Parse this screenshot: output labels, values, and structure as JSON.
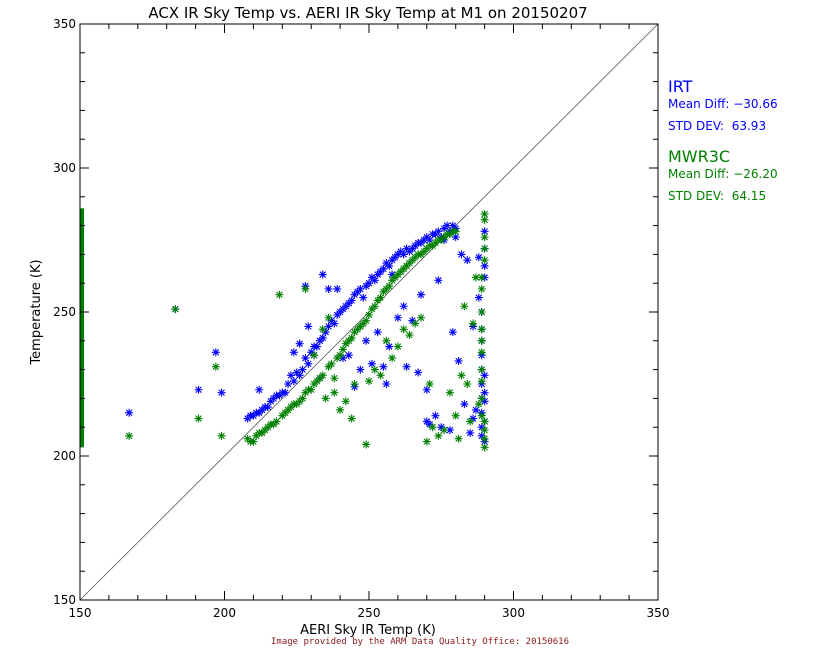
{
  "chart_data": {
    "type": "scatter",
    "title": "ACX IR Sky Temp vs. AERI IR Sky Temp at M1 on 20150207",
    "xlabel": "AERI Sky IR Temp (K)",
    "ylabel": "Temperature (K)",
    "xlim": [
      150,
      350
    ],
    "ylim": [
      150,
      350
    ],
    "xticks": [
      "150",
      "200",
      "250",
      "300",
      "350"
    ],
    "yticks": [
      "150",
      "200",
      "250",
      "300",
      "350"
    ],
    "grid": false,
    "reference_line": "1:1 diagonal",
    "legend_placement": "right",
    "series": [
      {
        "name": "IRT",
        "color": "#0000ff",
        "marker": "asterisk",
        "stats": [
          "Mean Diff: −30.66",
          "STD DEV:  63.93"
        ],
        "points": [
          [
            167,
            215
          ],
          [
            183,
            251
          ],
          [
            191,
            223
          ],
          [
            197,
            236
          ],
          [
            199,
            222
          ],
          [
            208,
            213
          ],
          [
            209,
            214
          ],
          [
            210,
            214
          ],
          [
            211,
            215
          ],
          [
            212,
            215
          ],
          [
            213,
            216
          ],
          [
            214,
            217
          ],
          [
            215,
            217
          ],
          [
            216,
            219
          ],
          [
            217,
            220
          ],
          [
            218,
            221
          ],
          [
            219,
            221
          ],
          [
            212,
            223
          ],
          [
            220,
            222
          ],
          [
            221,
            222
          ],
          [
            222,
            225
          ],
          [
            223,
            228
          ],
          [
            224,
            226
          ],
          [
            225,
            229
          ],
          [
            226,
            228
          ],
          [
            227,
            230
          ],
          [
            228,
            234
          ],
          [
            229,
            232
          ],
          [
            230,
            236
          ],
          [
            231,
            235
          ],
          [
            232,
            238
          ],
          [
            233,
            240
          ],
          [
            234,
            241
          ],
          [
            235,
            243
          ],
          [
            236,
            245
          ],
          [
            237,
            247
          ],
          [
            238,
            246
          ],
          [
            239,
            249
          ],
          [
            240,
            250
          ],
          [
            241,
            251
          ],
          [
            242,
            252
          ],
          [
            243,
            253
          ],
          [
            244,
            254
          ],
          [
            245,
            256
          ],
          [
            246,
            257
          ],
          [
            247,
            258
          ],
          [
            248,
            255
          ],
          [
            249,
            259
          ],
          [
            250,
            260
          ],
          [
            251,
            262
          ],
          [
            252,
            261
          ],
          [
            253,
            263
          ],
          [
            254,
            264
          ],
          [
            255,
            265
          ],
          [
            256,
            267
          ],
          [
            257,
            266
          ],
          [
            258,
            268
          ],
          [
            259,
            269
          ],
          [
            260,
            270
          ],
          [
            261,
            271
          ],
          [
            262,
            270
          ],
          [
            263,
            272
          ],
          [
            264,
            271
          ],
          [
            265,
            272
          ],
          [
            266,
            273
          ],
          [
            267,
            274
          ],
          [
            268,
            274
          ],
          [
            269,
            275
          ],
          [
            270,
            276
          ],
          [
            271,
            275
          ],
          [
            272,
            277
          ],
          [
            273,
            277
          ],
          [
            274,
            278
          ],
          [
            275,
            276
          ],
          [
            276,
            279
          ],
          [
            277,
            280
          ],
          [
            278,
            278
          ],
          [
            279,
            280
          ],
          [
            280,
            279
          ],
          [
            224,
            236
          ],
          [
            226,
            239
          ],
          [
            228,
            259
          ],
          [
            229,
            245
          ],
          [
            231,
            238
          ],
          [
            233,
            227
          ],
          [
            234,
            263
          ],
          [
            236,
            258
          ],
          [
            239,
            258
          ],
          [
            241,
            234
          ],
          [
            243,
            235
          ],
          [
            245,
            224
          ],
          [
            247,
            230
          ],
          [
            249,
            240
          ],
          [
            251,
            232
          ],
          [
            253,
            243
          ],
          [
            255,
            231
          ],
          [
            256,
            225
          ],
          [
            257,
            238
          ],
          [
            258,
            263
          ],
          [
            260,
            248
          ],
          [
            262,
            252
          ],
          [
            263,
            231
          ],
          [
            265,
            247
          ],
          [
            267,
            229
          ],
          [
            268,
            256
          ],
          [
            270,
            223
          ],
          [
            270,
            212
          ],
          [
            271,
            211
          ],
          [
            273,
            214
          ],
          [
            274,
            261
          ],
          [
            275,
            210
          ],
          [
            276,
            275
          ],
          [
            278,
            209
          ],
          [
            279,
            243
          ],
          [
            280,
            276
          ],
          [
            281,
            233
          ],
          [
            282,
            270
          ],
          [
            283,
            218
          ],
          [
            284,
            268
          ],
          [
            285,
            208
          ],
          [
            286,
            213
          ],
          [
            286,
            245
          ],
          [
            287,
            216
          ],
          [
            288,
            269
          ],
          [
            289,
            230
          ],
          [
            289,
            210
          ],
          [
            289,
            220
          ],
          [
            289,
            225
          ],
          [
            289,
            215
          ],
          [
            290,
            228
          ],
          [
            290,
            222
          ],
          [
            290,
            212
          ],
          [
            290,
            219
          ],
          [
            289,
            240
          ],
          [
            289,
            250
          ],
          [
            290,
            262
          ],
          [
            290,
            272
          ],
          [
            290,
            278
          ],
          [
            289,
            235
          ],
          [
            288,
            255
          ],
          [
            289,
            244
          ],
          [
            290,
            266
          ],
          [
            289,
            207
          ],
          [
            290,
            205
          ]
        ]
      },
      {
        "name": "MWR3C",
        "color": "#008000",
        "marker": "asterisk",
        "stats": [
          "Mean Diff: −26.20",
          "STD DEV:  64.15"
        ],
        "points": [
          [
            167,
            207
          ],
          [
            183,
            251
          ],
          [
            191,
            213
          ],
          [
            197,
            231
          ],
          [
            199,
            207
          ],
          [
            208,
            206
          ],
          [
            209,
            205
          ],
          [
            210,
            205
          ],
          [
            211,
            207
          ],
          [
            212,
            208
          ],
          [
            213,
            208
          ],
          [
            214,
            209
          ],
          [
            215,
            210
          ],
          [
            216,
            211
          ],
          [
            217,
            211
          ],
          [
            218,
            212
          ],
          [
            219,
            256
          ],
          [
            220,
            214
          ],
          [
            221,
            215
          ],
          [
            222,
            216
          ],
          [
            223,
            217
          ],
          [
            224,
            218
          ],
          [
            225,
            218
          ],
          [
            226,
            219
          ],
          [
            227,
            220
          ],
          [
            228,
            222
          ],
          [
            229,
            223
          ],
          [
            230,
            223
          ],
          [
            231,
            225
          ],
          [
            232,
            226
          ],
          [
            233,
            227
          ],
          [
            234,
            228
          ],
          [
            235,
            220
          ],
          [
            236,
            231
          ],
          [
            237,
            232
          ],
          [
            238,
            227
          ],
          [
            239,
            234
          ],
          [
            240,
            235
          ],
          [
            241,
            237
          ],
          [
            242,
            239
          ],
          [
            243,
            240
          ],
          [
            244,
            241
          ],
          [
            245,
            243
          ],
          [
            246,
            244
          ],
          [
            247,
            245
          ],
          [
            248,
            246
          ],
          [
            249,
            247
          ],
          [
            250,
            249
          ],
          [
            251,
            251
          ],
          [
            252,
            252
          ],
          [
            253,
            254
          ],
          [
            254,
            255
          ],
          [
            255,
            257
          ],
          [
            256,
            258
          ],
          [
            257,
            259
          ],
          [
            258,
            261
          ],
          [
            259,
            262
          ],
          [
            260,
            263
          ],
          [
            261,
            264
          ],
          [
            262,
            265
          ],
          [
            263,
            266
          ],
          [
            264,
            267
          ],
          [
            265,
            268
          ],
          [
            266,
            269
          ],
          [
            267,
            270
          ],
          [
            268,
            270
          ],
          [
            269,
            271
          ],
          [
            270,
            272
          ],
          [
            271,
            273
          ],
          [
            272,
            273
          ],
          [
            273,
            274
          ],
          [
            274,
            275
          ],
          [
            275,
            275
          ],
          [
            276,
            276
          ],
          [
            277,
            277
          ],
          [
            278,
            277
          ],
          [
            279,
            278
          ],
          [
            280,
            278
          ],
          [
            228,
            258
          ],
          [
            231,
            235
          ],
          [
            234,
            244
          ],
          [
            236,
            248
          ],
          [
            238,
            222
          ],
          [
            240,
            216
          ],
          [
            242,
            219
          ],
          [
            244,
            213
          ],
          [
            245,
            225
          ],
          [
            247,
            245
          ],
          [
            249,
            204
          ],
          [
            250,
            226
          ],
          [
            252,
            230
          ],
          [
            254,
            228
          ],
          [
            256,
            240
          ],
          [
            258,
            234
          ],
          [
            260,
            238
          ],
          [
            262,
            244
          ],
          [
            264,
            242
          ],
          [
            266,
            246
          ],
          [
            268,
            248
          ],
          [
            270,
            205
          ],
          [
            271,
            225
          ],
          [
            272,
            210
          ],
          [
            274,
            207
          ],
          [
            276,
            209
          ],
          [
            278,
            222
          ],
          [
            280,
            214
          ],
          [
            281,
            206
          ],
          [
            282,
            228
          ],
          [
            283,
            252
          ],
          [
            284,
            225
          ],
          [
            285,
            212
          ],
          [
            286,
            246
          ],
          [
            287,
            262
          ],
          [
            288,
            218
          ],
          [
            289,
            236
          ],
          [
            289,
            226
          ],
          [
            289,
            214
          ],
          [
            289,
            220
          ],
          [
            289,
            230
          ],
          [
            289,
            240
          ],
          [
            289,
            250
          ],
          [
            289,
            258
          ],
          [
            290,
            268
          ],
          [
            290,
            276
          ],
          [
            290,
            282
          ],
          [
            290,
            284
          ],
          [
            290,
            209
          ],
          [
            290,
            203
          ],
          [
            290,
            206
          ],
          [
            290,
            212
          ],
          [
            289,
            244
          ],
          [
            289,
            262
          ],
          [
            290,
            272
          ]
        ]
      },
      {
        "name": "MWR3C edge band",
        "color": "#008000",
        "marker": "vertical-bar",
        "points": [
          [
            150,
            203
          ],
          [
            150,
            286
          ]
        ]
      }
    ]
  },
  "footer": "Image provided by the ARM Data Quality Office: 20150616"
}
